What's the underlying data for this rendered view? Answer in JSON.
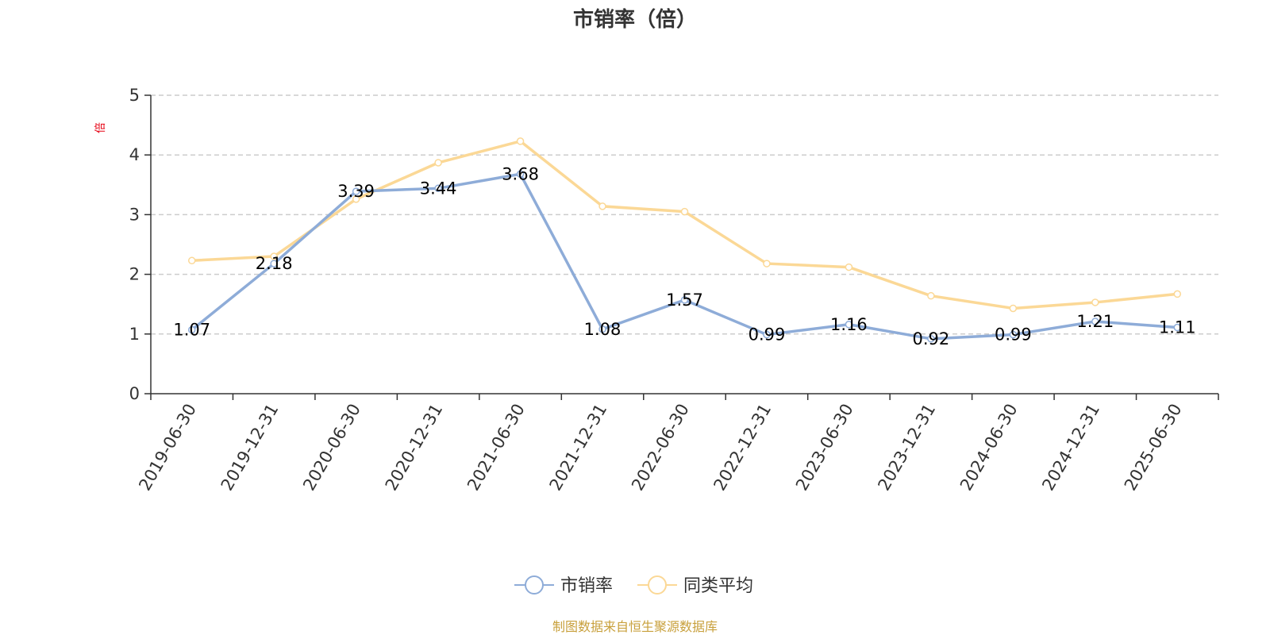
{
  "chart_data": {
    "type": "line",
    "title": "市销率（倍）",
    "xlabel": "",
    "ylabel": "倍",
    "ylim": [
      0,
      5
    ],
    "yticks": [
      0,
      1,
      2,
      3,
      4,
      5
    ],
    "grid": true,
    "legend_position": "bottom-center",
    "categories": [
      "2019-06-30",
      "2019-12-31",
      "2020-06-30",
      "2020-12-31",
      "2021-06-30",
      "2021-12-31",
      "2022-06-30",
      "2022-12-31",
      "2023-06-30",
      "2023-12-31",
      "2024-06-30",
      "2024-12-31",
      "2025-06-30"
    ],
    "series": [
      {
        "name": "市销率",
        "color": "#8eacd8",
        "values": [
          1.07,
          2.18,
          3.39,
          3.44,
          3.68,
          1.08,
          1.57,
          0.99,
          1.16,
          0.92,
          0.99,
          1.21,
          1.11
        ],
        "labels": [
          "1.07",
          "2.18",
          "3.39",
          "3.44",
          "3.68",
          "1.08",
          "1.57",
          "0.99",
          "1.16",
          "0.92",
          "0.99",
          "1.21",
          "1.11"
        ]
      },
      {
        "name": "同类平均",
        "color": "#fbd896",
        "values": [
          2.23,
          2.3,
          3.26,
          3.87,
          4.23,
          3.14,
          3.05,
          2.18,
          2.12,
          1.64,
          1.43,
          1.53,
          1.67
        ]
      }
    ]
  },
  "footer": {
    "source": "制图数据来自恒生聚源数据库"
  }
}
